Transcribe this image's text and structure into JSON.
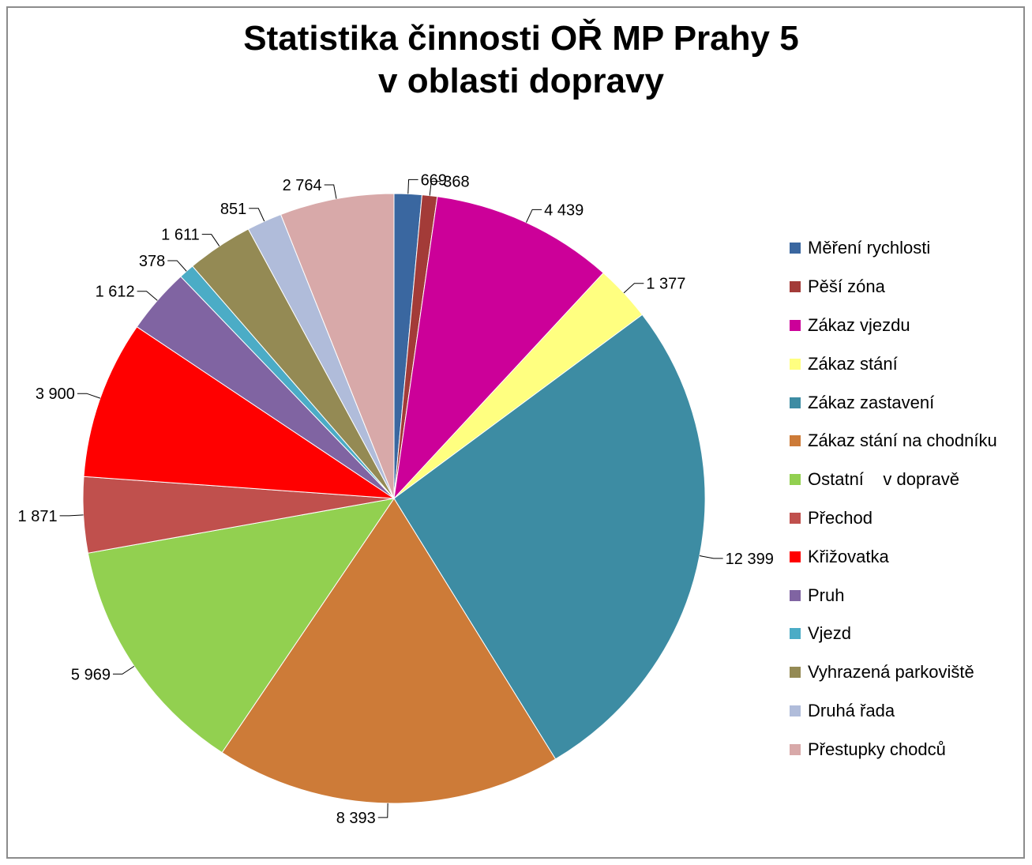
{
  "chart_data": {
    "type": "pie",
    "title_line1": "Statistika činnosti OŘ MP Prahy 5",
    "title_line2": "v oblasti dopravy",
    "legend_position": "right",
    "categories": [
      "Měření rychlosti",
      "Pěší zóna",
      "Zákaz vjezdu",
      "Zákaz stání",
      "Zákaz zastavení",
      "Zákaz stání na chodníku",
      "Ostatní    v dopravě",
      "Přechod",
      "Křižovatka",
      "Pruh",
      "Vjezd",
      "Vyhrazená parkoviště",
      "Druhá řada",
      "Přestupky chodců"
    ],
    "values": [
      669,
      368,
      4439,
      1377,
      12399,
      8393,
      5969,
      1871,
      3900,
      1612,
      378,
      1611,
      851,
      2764
    ],
    "value_labels": [
      "669",
      "368",
      "4 439",
      "1 377",
      "12 399",
      "8 393",
      "5 969",
      "1 871",
      "3 900",
      "1 612",
      "378",
      "1 611",
      "851",
      "2 764"
    ],
    "colors": [
      "#3A67A0",
      "#A33B38",
      "#CC0099",
      "#FFFF80",
      "#3D8CA3",
      "#CD7B38",
      "#92D050",
      "#C0504D",
      "#FF0000",
      "#8064A2",
      "#4BACC6",
      "#948A54",
      "#B0BCDA",
      "#D8A9A9"
    ]
  }
}
